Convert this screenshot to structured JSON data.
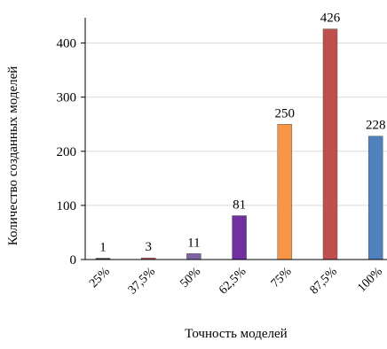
{
  "chart_data": {
    "type": "bar",
    "categories": [
      "25%",
      "37,5%",
      "50%",
      "62,5%",
      "75%",
      "87,5%",
      "100%"
    ],
    "values": [
      1,
      3,
      11,
      81,
      250,
      426,
      228
    ],
    "data_labels": [
      "1",
      "3",
      "11",
      "81",
      "250",
      "426",
      "228"
    ],
    "colors": [
      "#404040",
      "#c0504d",
      "#8064a2",
      "#7030a0",
      "#f79646",
      "#c0504d",
      "#4f81bd"
    ],
    "xlabel": "Точность моделей",
    "ylabel": "Количество созданных моделей",
    "ylim": [
      0,
      400
    ],
    "yticks": [
      0,
      100,
      200,
      300,
      400
    ],
    "grid": true
  }
}
